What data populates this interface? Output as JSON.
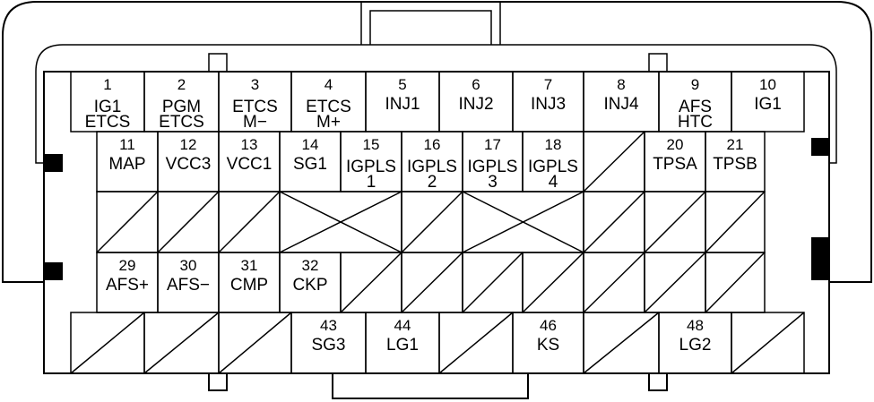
{
  "connector": {
    "rows": [
      [
        {
          "pin": "1",
          "lines": [
            "IG1",
            "ETCS"
          ]
        },
        {
          "pin": "2",
          "lines": [
            "PGM",
            "ETCS"
          ]
        },
        {
          "pin": "3",
          "lines": [
            "ETCS",
            "M−"
          ]
        },
        {
          "pin": "4",
          "lines": [
            "ETCS",
            "M+"
          ]
        },
        {
          "pin": "5",
          "lines": [
            "INJ1"
          ]
        },
        {
          "pin": "6",
          "lines": [
            "INJ2"
          ]
        },
        {
          "pin": "7",
          "lines": [
            "INJ3"
          ]
        },
        {
          "pin": "8",
          "lines": [
            "INJ4"
          ]
        },
        {
          "pin": "9",
          "lines": [
            "AFS",
            "HTC"
          ]
        },
        {
          "pin": "10",
          "lines": [
            "IG1"
          ]
        }
      ],
      [
        {
          "pin": "11",
          "lines": [
            "MAP"
          ]
        },
        {
          "pin": "12",
          "lines": [
            "VCC3"
          ]
        },
        {
          "pin": "13",
          "lines": [
            "VCC1"
          ]
        },
        {
          "pin": "14",
          "lines": [
            "SG1"
          ]
        },
        {
          "pin": "15",
          "lines": [
            "IGPLS",
            "1"
          ]
        },
        {
          "pin": "16",
          "lines": [
            "IGPLS",
            "2"
          ]
        },
        {
          "pin": "17",
          "lines": [
            "IGPLS",
            "3"
          ]
        },
        {
          "pin": "18",
          "lines": [
            "IGPLS",
            "4"
          ]
        },
        {
          "blocked": "diagonal"
        },
        {
          "pin": "20",
          "lines": [
            "TPSA"
          ]
        },
        {
          "pin": "21",
          "lines": [
            "TPSB"
          ]
        }
      ],
      [
        {
          "blocked": "diagonal"
        },
        {
          "blocked": "diagonal"
        },
        {
          "blocked": "diagonal"
        },
        {
          "blocked": "cross"
        },
        {
          "blocked": "diagonal"
        },
        {
          "blocked": "cross"
        },
        {
          "blocked": "diagonal"
        },
        {
          "blocked": "diagonal"
        },
        {
          "blocked": "diagonal"
        }
      ],
      [
        {
          "pin": "29",
          "lines": [
            "AFS+"
          ]
        },
        {
          "pin": "30",
          "lines": [
            "AFS−"
          ]
        },
        {
          "pin": "31",
          "lines": [
            "CMP"
          ]
        },
        {
          "pin": "32",
          "lines": [
            "CKP"
          ]
        },
        {
          "blocked": "diagonal"
        },
        {
          "blocked": "diagonal"
        },
        {
          "blocked": "diagonal"
        },
        {
          "blocked": "diagonal"
        },
        {
          "blocked": "diagonal"
        },
        {
          "blocked": "diagonal"
        },
        {
          "blocked": "diagonal"
        }
      ],
      [
        {
          "blocked": "diagonal"
        },
        {
          "blocked": "diagonal"
        },
        {
          "blocked": "diagonal"
        },
        {
          "pin": "43",
          "lines": [
            "SG3"
          ]
        },
        {
          "pin": "44",
          "lines": [
            "LG1"
          ]
        },
        {
          "blocked": "diagonal"
        },
        {
          "pin": "46",
          "lines": [
            "KS"
          ]
        },
        {
          "blocked": "diagonal"
        },
        {
          "pin": "48",
          "lines": [
            "LG2"
          ]
        },
        {
          "blocked": "diagonal"
        }
      ]
    ]
  }
}
